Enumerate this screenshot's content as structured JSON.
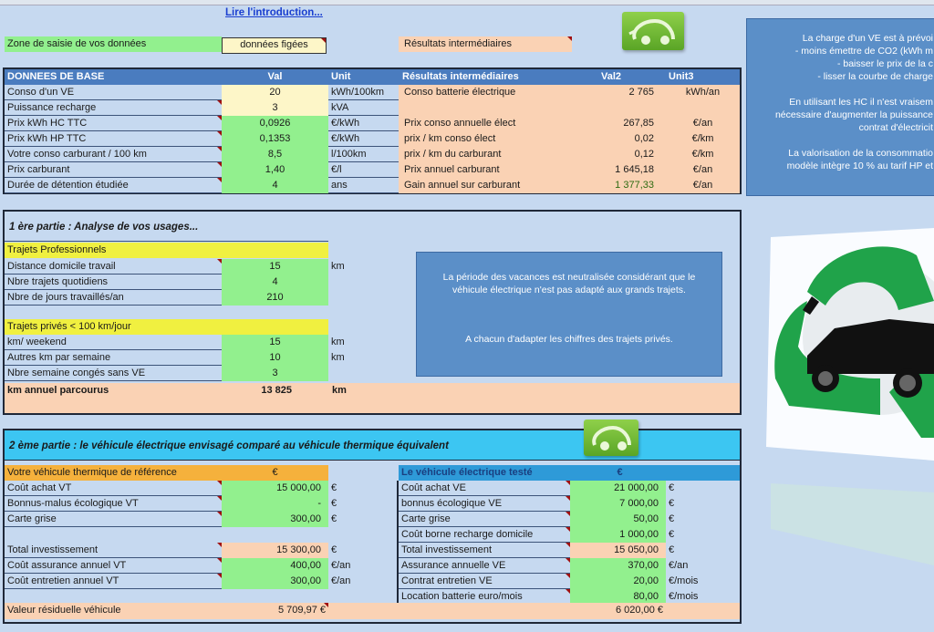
{
  "intro_link": "Lire l'introduction...",
  "legend": {
    "input_zone": "Zone de saisie de vos données",
    "frozen": "données figées",
    "intermediate": "Résultats intermédiaires"
  },
  "base_table": {
    "headers": [
      "DONNEES DE BASE",
      "Val",
      "Unit",
      "Résultats intermédiaires",
      "Val2",
      "Unit3"
    ],
    "rows": [
      {
        "label": "Conso d'un VE",
        "val": "20",
        "unit": "kWh/100km",
        "rlabel": "Conso batterie électrique",
        "val2": "2 765",
        "unit3": "kWh/an",
        "style": "yellowc"
      },
      {
        "label": "Puissance recharge",
        "val": "3",
        "unit": "kVA",
        "rlabel": "",
        "val2": "",
        "unit3": "",
        "style": "yellowc"
      },
      {
        "label": "Prix kWh HC TTC",
        "val": "0,0926",
        "unit": "€/kWh",
        "rlabel": "Prix conso annuelle élect",
        "val2": "267,85",
        "unit3": "€/an",
        "style": "green"
      },
      {
        "label": "Prix kWh HP TTC",
        "val": "0,1353",
        "unit": "€/kWh",
        "rlabel": "prix / km conso élect",
        "val2": "0,02",
        "unit3": "€/km",
        "style": "green"
      },
      {
        "label": "Votre conso carburant / 100 km",
        "val": "8,5",
        "unit": "l/100km",
        "rlabel": "prix / km du carburant",
        "val2": "0,12",
        "unit3": "€/km",
        "style": "green"
      },
      {
        "label": "Prix carburant",
        "val": "1,40",
        "unit": "€/l",
        "rlabel": "Prix annuel carburant",
        "val2": "1 645,18",
        "unit3": "€/an",
        "style": "green"
      },
      {
        "label": "Durée de détention étudiée",
        "val": "4",
        "unit": "ans",
        "rlabel": "Gain annuel sur carburant",
        "val2": "1 377,33",
        "unit3": "€/an",
        "style": "green"
      }
    ]
  },
  "side_note": [
    "La charge d'un VE est à prévoi",
    "- moins émettre de CO2 (kWh m",
    "- baisser le prix de la c",
    "- lisser la courbe de charge",
    "",
    "En utilisant les HC il n'est vraisem",
    "nécessaire d'augmenter la puissance",
    "contrat d'électricit",
    "",
    "La valorisation de la consommatio",
    "modèle intègre 10 % au tarif HP et"
  ],
  "part1": {
    "title": "1 ère partie : Analyse de vos usages...",
    "pro_header": "Trajets Professionnels",
    "pro_rows": [
      {
        "label": "Distance domicile travail",
        "val": "15",
        "unit": "km"
      },
      {
        "label": "Nbre trajets quotidiens",
        "val": "4",
        "unit": ""
      },
      {
        "label": "Nbre de jours travaillés/an",
        "val": "210",
        "unit": ""
      }
    ],
    "priv_header": "Trajets privés < 100 km/jour",
    "priv_rows": [
      {
        "label": "km/ weekend",
        "val": "15",
        "unit": "km"
      },
      {
        "label": "Autres km par semaine",
        "val": "10",
        "unit": "km"
      },
      {
        "label": "Nbre semaine congés sans VE",
        "val": "3",
        "unit": ""
      }
    ],
    "total": {
      "label": "km annuel parcourus",
      "val": "13 825",
      "unit": "km"
    },
    "note1": "La période des vacances est neutralisée considérant que le véhicule électrique n'est pas adapté aux grands trajets.",
    "note2": "A chacun d'adapter les chiffres des trajets privés."
  },
  "part2": {
    "title": "2 ème partie  : le véhicule électrique envisagé comparé au véhicule thermique équivalent",
    "vt_header": "Votre véhicule thermique de référence",
    "vt_header_unit": "€",
    "vt_rows": [
      {
        "label": "Coût achat VT",
        "val": "15 000,00",
        "unit": "€",
        "style": "green"
      },
      {
        "label": "Bonnus-malus écologique VT",
        "val": "-",
        "unit": "€",
        "style": "green"
      },
      {
        "label": "Carte grise",
        "val": "300,00",
        "unit": "€",
        "style": "green"
      },
      null,
      {
        "label": "Total investissement",
        "val": "15 300,00",
        "unit": "€",
        "style": "peach"
      },
      {
        "label": "Coût assurance annuel VT",
        "val": "400,00",
        "unit": "€/an",
        "style": "green"
      },
      {
        "label": "Coût entretien annuel VT",
        "val": "300,00",
        "unit": "€/an",
        "style": "green"
      }
    ],
    "ve_header": "Le véhicule électrique testé",
    "ve_header_unit": "€",
    "ve_rows": [
      {
        "label": "Coût achat VE",
        "val": "21 000,00",
        "unit": "€",
        "style": "green"
      },
      {
        "label": "bonnus écologique VE",
        "val": "7 000,00",
        "unit": "€",
        "style": "green"
      },
      {
        "label": "Carte grise",
        "val": "50,00",
        "unit": "€",
        "style": "green"
      },
      {
        "label": "Coût borne recharge domicile",
        "val": "1 000,00",
        "unit": "€",
        "style": "green"
      },
      {
        "label": "Total investissement",
        "val": "15 050,00",
        "unit": "€",
        "style": "peach"
      },
      {
        "label": "Assurance annuelle VE",
        "val": "370,00",
        "unit": "€/an",
        "style": "green"
      },
      {
        "label": "Contrat entretien VE",
        "val": "20,00",
        "unit": "€/mois",
        "style": "green"
      },
      {
        "label": "Location batterie  euro/mois",
        "val": "80,00",
        "unit": "€/mois",
        "style": "green"
      }
    ],
    "residual_label": "Valeur résiduelle véhicule",
    "residual_vt": "5 709,97 €",
    "residual_ve": "6 020,00 €"
  },
  "colors": {
    "input": "#92f08e",
    "result": "#fad2b4",
    "header": "#4a7cbf",
    "background": "#c6d9f0"
  },
  "icons": [
    "ev-car-plug-icon",
    "recycle-ev-car-image"
  ]
}
